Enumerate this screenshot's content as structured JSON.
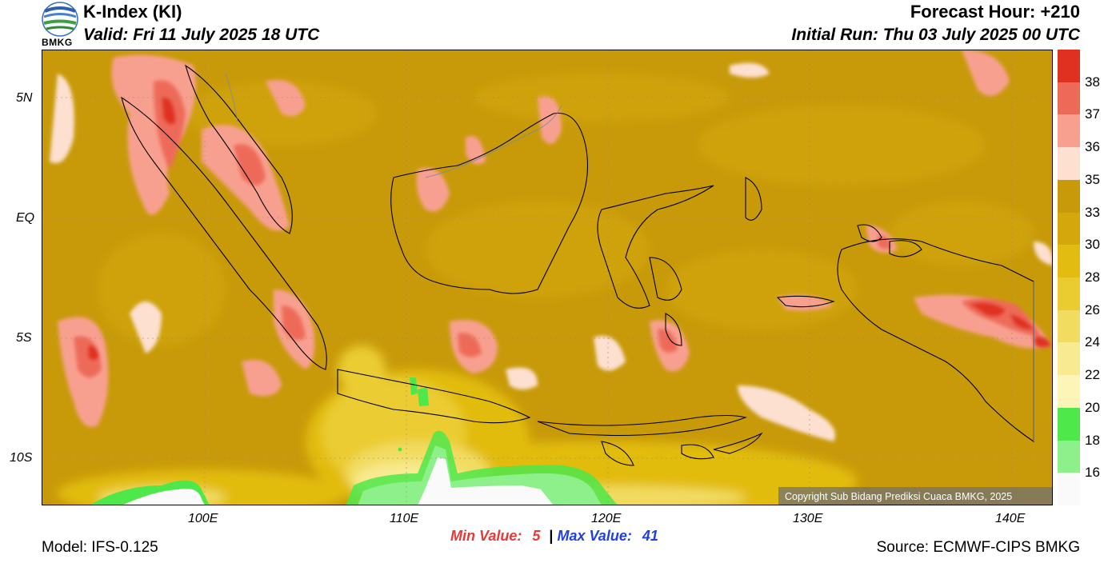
{
  "header": {
    "logo_text": "BMKG",
    "title": "K-Index (KI)",
    "valid": "Valid: Fri 11 July 2025 18 UTC",
    "forecast_hour": "Forecast Hour: +210",
    "initial_run": "Initial Run: Thu 03 July 2025 00 UTC"
  },
  "map": {
    "lat_ticks": [
      "5N",
      "EQ",
      "5S",
      "10S"
    ],
    "lon_ticks": [
      "100E",
      "110E",
      "120E",
      "130E",
      "140E"
    ],
    "copyright": "Copyright Sub Bidang Prediksi Cuaca BMKG, 2025",
    "land_color": "#000000",
    "background_color": "#c89a0a"
  },
  "colorbar": {
    "labels": [
      "38",
      "37",
      "36",
      "35",
      "33",
      "30",
      "28",
      "26",
      "24",
      "22",
      "20",
      "18",
      "16"
    ],
    "colors": [
      "#e03020",
      "#ee6a58",
      "#f8a090",
      "#fde0d0",
      "#c89a0a",
      "#d4a80c",
      "#e2bc10",
      "#ebcc30",
      "#f2dc60",
      "#f8ea90",
      "#fdf5b8",
      "#4ee84a",
      "#8ef08a",
      "#fafafa"
    ]
  },
  "stats": {
    "min_label": "Min Value:",
    "min_value": "5",
    "separator": "|",
    "max_label": "Max Value:",
    "max_value": "41",
    "min_color": "#e83838",
    "max_color": "#2040e0"
  },
  "footer": {
    "model": "Model: IFS-0.125",
    "source": "Source: ECMWF-CIPS BMKG"
  }
}
